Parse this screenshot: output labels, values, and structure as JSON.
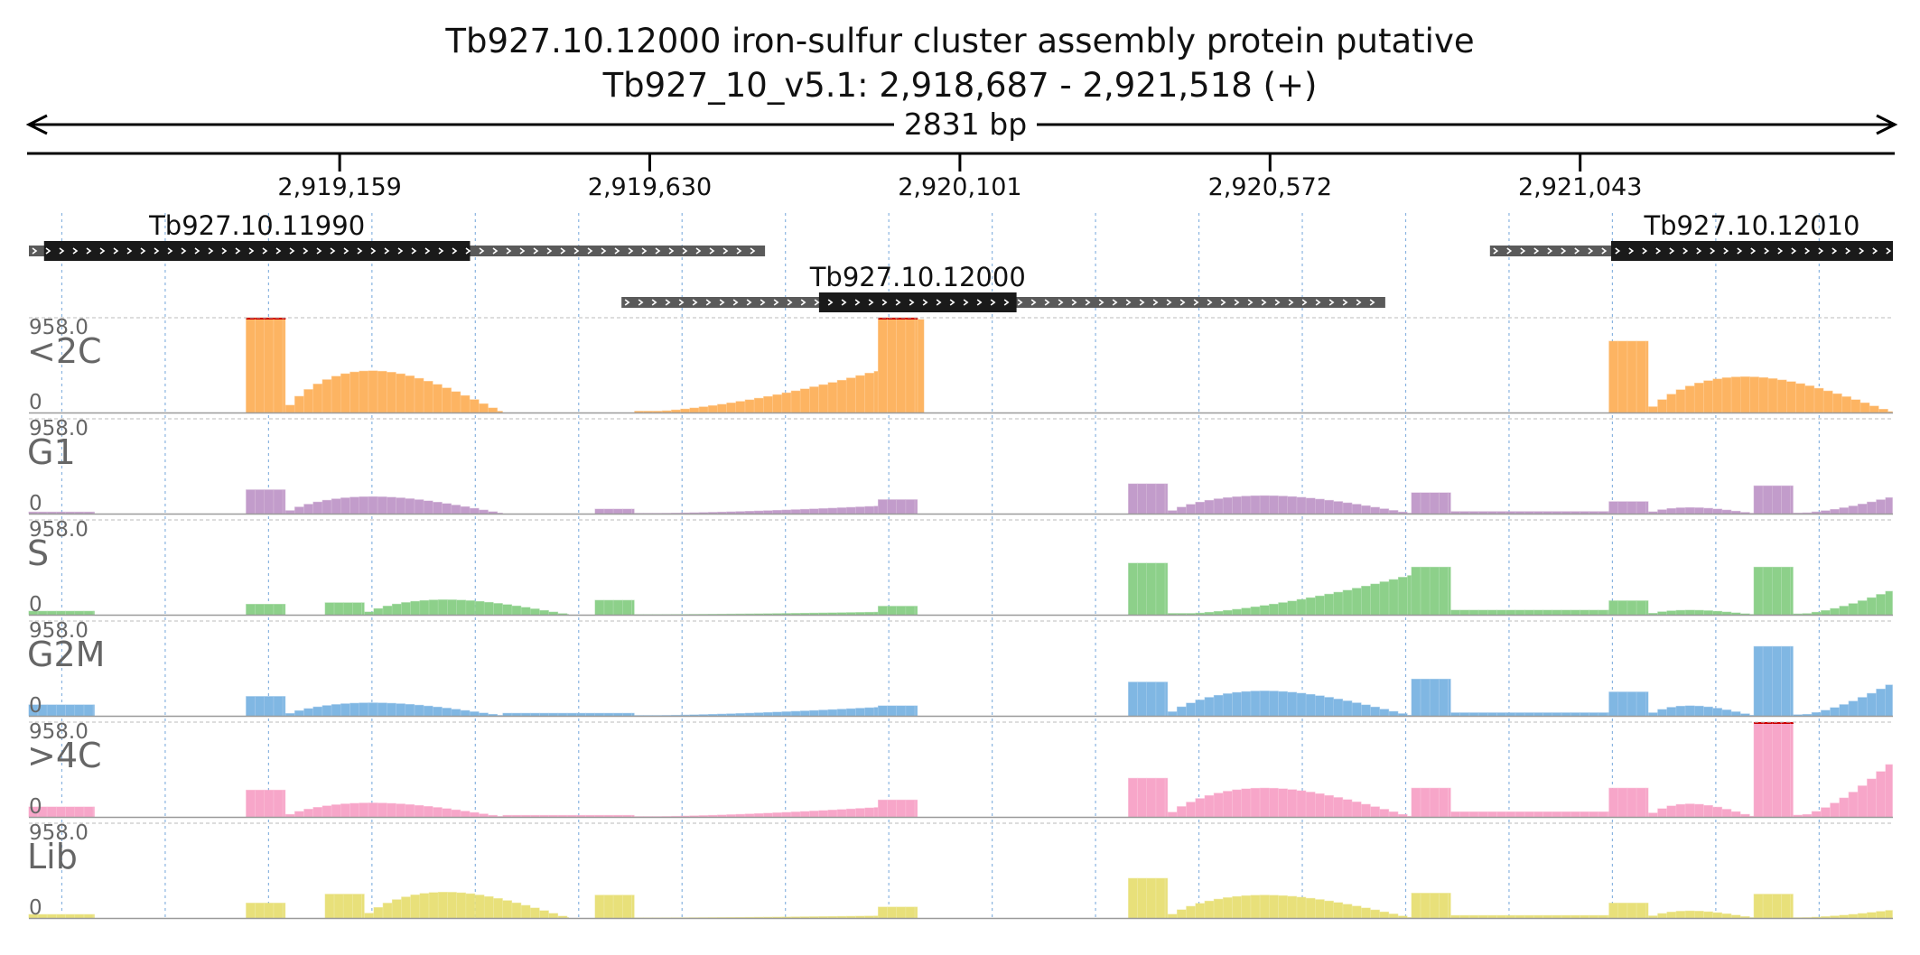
{
  "title": "Tb927.10.12000  iron-sulfur cluster assembly protein  putative",
  "subtitle": "Tb927_10_v5.1: 2,918,687 - 2,921,518 (+)",
  "span_label": "2831 bp",
  "colors": {
    "text": "#111111",
    "axis": "#000000",
    "gene": "#1a1a1a",
    "utr": "#5a5a5a",
    "grid": "#8ab4e0",
    "clip": "#cc0000",
    "track_label": "#666666"
  },
  "chart_data": {
    "type": "bar",
    "region": {
      "chrom": "Tb927_10_v5.1",
      "start": 2918687,
      "end": 2921518,
      "strand": "+"
    },
    "xaxis": {
      "tick_values": [
        2919159,
        2919630,
        2920101,
        2920572,
        2921043
      ],
      "tick_labels": [
        "2,919,159",
        "2,919,630",
        "2,920,101",
        "2,920,572",
        "2,921,043"
      ]
    },
    "genes": [
      {
        "name": "Tb927.10.11990",
        "start": 2918687,
        "end": 2919805,
        "cds_start": 2918710,
        "cds_end": 2919357,
        "row": 0
      },
      {
        "name": "Tb927.10.12000",
        "start": 2919587,
        "end": 2920747,
        "cds_start": 2919887,
        "cds_end": 2920187,
        "row": 1
      },
      {
        "name": "Tb927.10.12010",
        "start": 2920906,
        "end": 2921518,
        "cds_start": 2921090,
        "cds_end": 2921518,
        "row": 0
      }
    ],
    "ylim": [
      0,
      958.0
    ],
    "y_max_label": "958.0",
    "y_min_label": "0",
    "bin_bp": 14,
    "series": [
      {
        "name": "<2C",
        "color": "#fdb462",
        "segments": [
          {
            "start": 2919017,
            "end": 2919077,
            "shape": "flat",
            "peak": 958
          },
          {
            "start": 2919077,
            "end": 2919407,
            "shape": "hump",
            "peak": 420
          },
          {
            "start": 2919607,
            "end": 2919977,
            "shape": "ramp",
            "peak": 420
          },
          {
            "start": 2919977,
            "end": 2920037,
            "shape": "flat",
            "peak": 958
          },
          {
            "start": 2920037,
            "end": 2920047,
            "shape": "flat",
            "peak": 940
          },
          {
            "start": 2921087,
            "end": 2921147,
            "shape": "flat",
            "peak": 720
          },
          {
            "start": 2921147,
            "end": 2921518,
            "shape": "hump",
            "peak": 360
          }
        ]
      },
      {
        "name": "G1",
        "color": "#c29ccb",
        "segments": [
          {
            "start": 2918687,
            "end": 2918787,
            "shape": "flat",
            "peak": 15
          },
          {
            "start": 2919017,
            "end": 2919077,
            "shape": "flat",
            "peak": 240
          },
          {
            "start": 2919077,
            "end": 2919407,
            "shape": "hump",
            "peak": 170
          },
          {
            "start": 2919547,
            "end": 2919607,
            "shape": "flat",
            "peak": 45
          },
          {
            "start": 2919607,
            "end": 2919977,
            "shape": "ramp",
            "peak": 75
          },
          {
            "start": 2919977,
            "end": 2920037,
            "shape": "flat",
            "peak": 140
          },
          {
            "start": 2920357,
            "end": 2920417,
            "shape": "flat",
            "peak": 300
          },
          {
            "start": 2920417,
            "end": 2920787,
            "shape": "hump",
            "peak": 180
          },
          {
            "start": 2920787,
            "end": 2920847,
            "shape": "flat",
            "peak": 210
          },
          {
            "start": 2920847,
            "end": 2921087,
            "shape": "flat",
            "peak": 20
          },
          {
            "start": 2921087,
            "end": 2921147,
            "shape": "flat",
            "peak": 120
          },
          {
            "start": 2921147,
            "end": 2921307,
            "shape": "hump",
            "peak": 60
          },
          {
            "start": 2921307,
            "end": 2921367,
            "shape": "flat",
            "peak": 280
          },
          {
            "start": 2921367,
            "end": 2921518,
            "shape": "ramp",
            "peak": 170
          }
        ]
      },
      {
        "name": "S",
        "color": "#8dd08a",
        "segments": [
          {
            "start": 2918687,
            "end": 2918787,
            "shape": "flat",
            "peak": 35
          },
          {
            "start": 2919017,
            "end": 2919077,
            "shape": "flat",
            "peak": 105
          },
          {
            "start": 2919137,
            "end": 2919197,
            "shape": "flat",
            "peak": 120
          },
          {
            "start": 2919197,
            "end": 2919507,
            "shape": "hump",
            "peak": 150
          },
          {
            "start": 2919547,
            "end": 2919607,
            "shape": "flat",
            "peak": 145
          },
          {
            "start": 2919607,
            "end": 2919977,
            "shape": "ramp",
            "peak": 25
          },
          {
            "start": 2919977,
            "end": 2920037,
            "shape": "flat",
            "peak": 85
          },
          {
            "start": 2920357,
            "end": 2920417,
            "shape": "flat",
            "peak": 520
          },
          {
            "start": 2920417,
            "end": 2920787,
            "shape": "ramp",
            "peak": 400
          },
          {
            "start": 2920787,
            "end": 2920847,
            "shape": "flat",
            "peak": 480
          },
          {
            "start": 2920847,
            "end": 2921087,
            "shape": "flat",
            "peak": 45
          },
          {
            "start": 2921087,
            "end": 2921147,
            "shape": "flat",
            "peak": 140
          },
          {
            "start": 2921147,
            "end": 2921307,
            "shape": "hump",
            "peak": 45
          },
          {
            "start": 2921307,
            "end": 2921367,
            "shape": "flat",
            "peak": 480
          },
          {
            "start": 2921367,
            "end": 2921518,
            "shape": "ramp",
            "peak": 250
          }
        ]
      },
      {
        "name": "G2M",
        "color": "#80b7e3",
        "segments": [
          {
            "start": 2918687,
            "end": 2918787,
            "shape": "flat",
            "peak": 110
          },
          {
            "start": 2919017,
            "end": 2919077,
            "shape": "flat",
            "peak": 195
          },
          {
            "start": 2919077,
            "end": 2919407,
            "shape": "hump",
            "peak": 130
          },
          {
            "start": 2919407,
            "end": 2919607,
            "shape": "flat",
            "peak": 25
          },
          {
            "start": 2919607,
            "end": 2919977,
            "shape": "ramp",
            "peak": 85
          },
          {
            "start": 2919977,
            "end": 2920037,
            "shape": "flat",
            "peak": 100
          },
          {
            "start": 2920357,
            "end": 2920417,
            "shape": "flat",
            "peak": 340
          },
          {
            "start": 2920417,
            "end": 2920787,
            "shape": "hump",
            "peak": 250
          },
          {
            "start": 2920787,
            "end": 2920847,
            "shape": "flat",
            "peak": 370
          },
          {
            "start": 2920847,
            "end": 2921087,
            "shape": "flat",
            "peak": 30
          },
          {
            "start": 2921087,
            "end": 2921147,
            "shape": "flat",
            "peak": 240
          },
          {
            "start": 2921147,
            "end": 2921307,
            "shape": "hump",
            "peak": 100
          },
          {
            "start": 2921307,
            "end": 2921367,
            "shape": "flat",
            "peak": 700
          },
          {
            "start": 2921367,
            "end": 2921518,
            "shape": "ramp",
            "peak": 330
          }
        ]
      },
      {
        "name": ">4C",
        "color": "#f7a6c9",
        "segments": [
          {
            "start": 2918687,
            "end": 2918787,
            "shape": "flat",
            "peak": 100
          },
          {
            "start": 2919017,
            "end": 2919077,
            "shape": "flat",
            "peak": 270
          },
          {
            "start": 2919077,
            "end": 2919407,
            "shape": "hump",
            "peak": 140
          },
          {
            "start": 2919407,
            "end": 2919607,
            "shape": "flat",
            "peak": 15
          },
          {
            "start": 2919607,
            "end": 2919977,
            "shape": "ramp",
            "peak": 95
          },
          {
            "start": 2919977,
            "end": 2920037,
            "shape": "flat",
            "peak": 170
          },
          {
            "start": 2920357,
            "end": 2920417,
            "shape": "flat",
            "peak": 390
          },
          {
            "start": 2920417,
            "end": 2920787,
            "shape": "hump",
            "peak": 290
          },
          {
            "start": 2920787,
            "end": 2920847,
            "shape": "flat",
            "peak": 290
          },
          {
            "start": 2920847,
            "end": 2921087,
            "shape": "flat",
            "peak": 50
          },
          {
            "start": 2921087,
            "end": 2921147,
            "shape": "flat",
            "peak": 290
          },
          {
            "start": 2921147,
            "end": 2921307,
            "shape": "hump",
            "peak": 130
          },
          {
            "start": 2921307,
            "end": 2921367,
            "shape": "flat",
            "peak": 958
          },
          {
            "start": 2921367,
            "end": 2921518,
            "shape": "ramp",
            "peak": 560
          }
        ]
      },
      {
        "name": "Lib",
        "color": "#e8e07a",
        "segments": [
          {
            "start": 2918687,
            "end": 2918787,
            "shape": "flat",
            "peak": 35
          },
          {
            "start": 2919017,
            "end": 2919077,
            "shape": "flat",
            "peak": 150
          },
          {
            "start": 2919137,
            "end": 2919197,
            "shape": "flat",
            "peak": 240
          },
          {
            "start": 2919197,
            "end": 2919507,
            "shape": "hump",
            "peak": 260
          },
          {
            "start": 2919547,
            "end": 2919607,
            "shape": "flat",
            "peak": 230
          },
          {
            "start": 2919607,
            "end": 2919977,
            "shape": "ramp",
            "peak": 20
          },
          {
            "start": 2919977,
            "end": 2920037,
            "shape": "flat",
            "peak": 110
          },
          {
            "start": 2920357,
            "end": 2920417,
            "shape": "flat",
            "peak": 400
          },
          {
            "start": 2920417,
            "end": 2920787,
            "shape": "hump",
            "peak": 230
          },
          {
            "start": 2920787,
            "end": 2920847,
            "shape": "flat",
            "peak": 250
          },
          {
            "start": 2920847,
            "end": 2921087,
            "shape": "flat",
            "peak": 25
          },
          {
            "start": 2921087,
            "end": 2921147,
            "shape": "flat",
            "peak": 150
          },
          {
            "start": 2921147,
            "end": 2921307,
            "shape": "hump",
            "peak": 70
          },
          {
            "start": 2921307,
            "end": 2921367,
            "shape": "flat",
            "peak": 240
          },
          {
            "start": 2921367,
            "end": 2921518,
            "shape": "ramp",
            "peak": 80
          }
        ]
      }
    ]
  }
}
